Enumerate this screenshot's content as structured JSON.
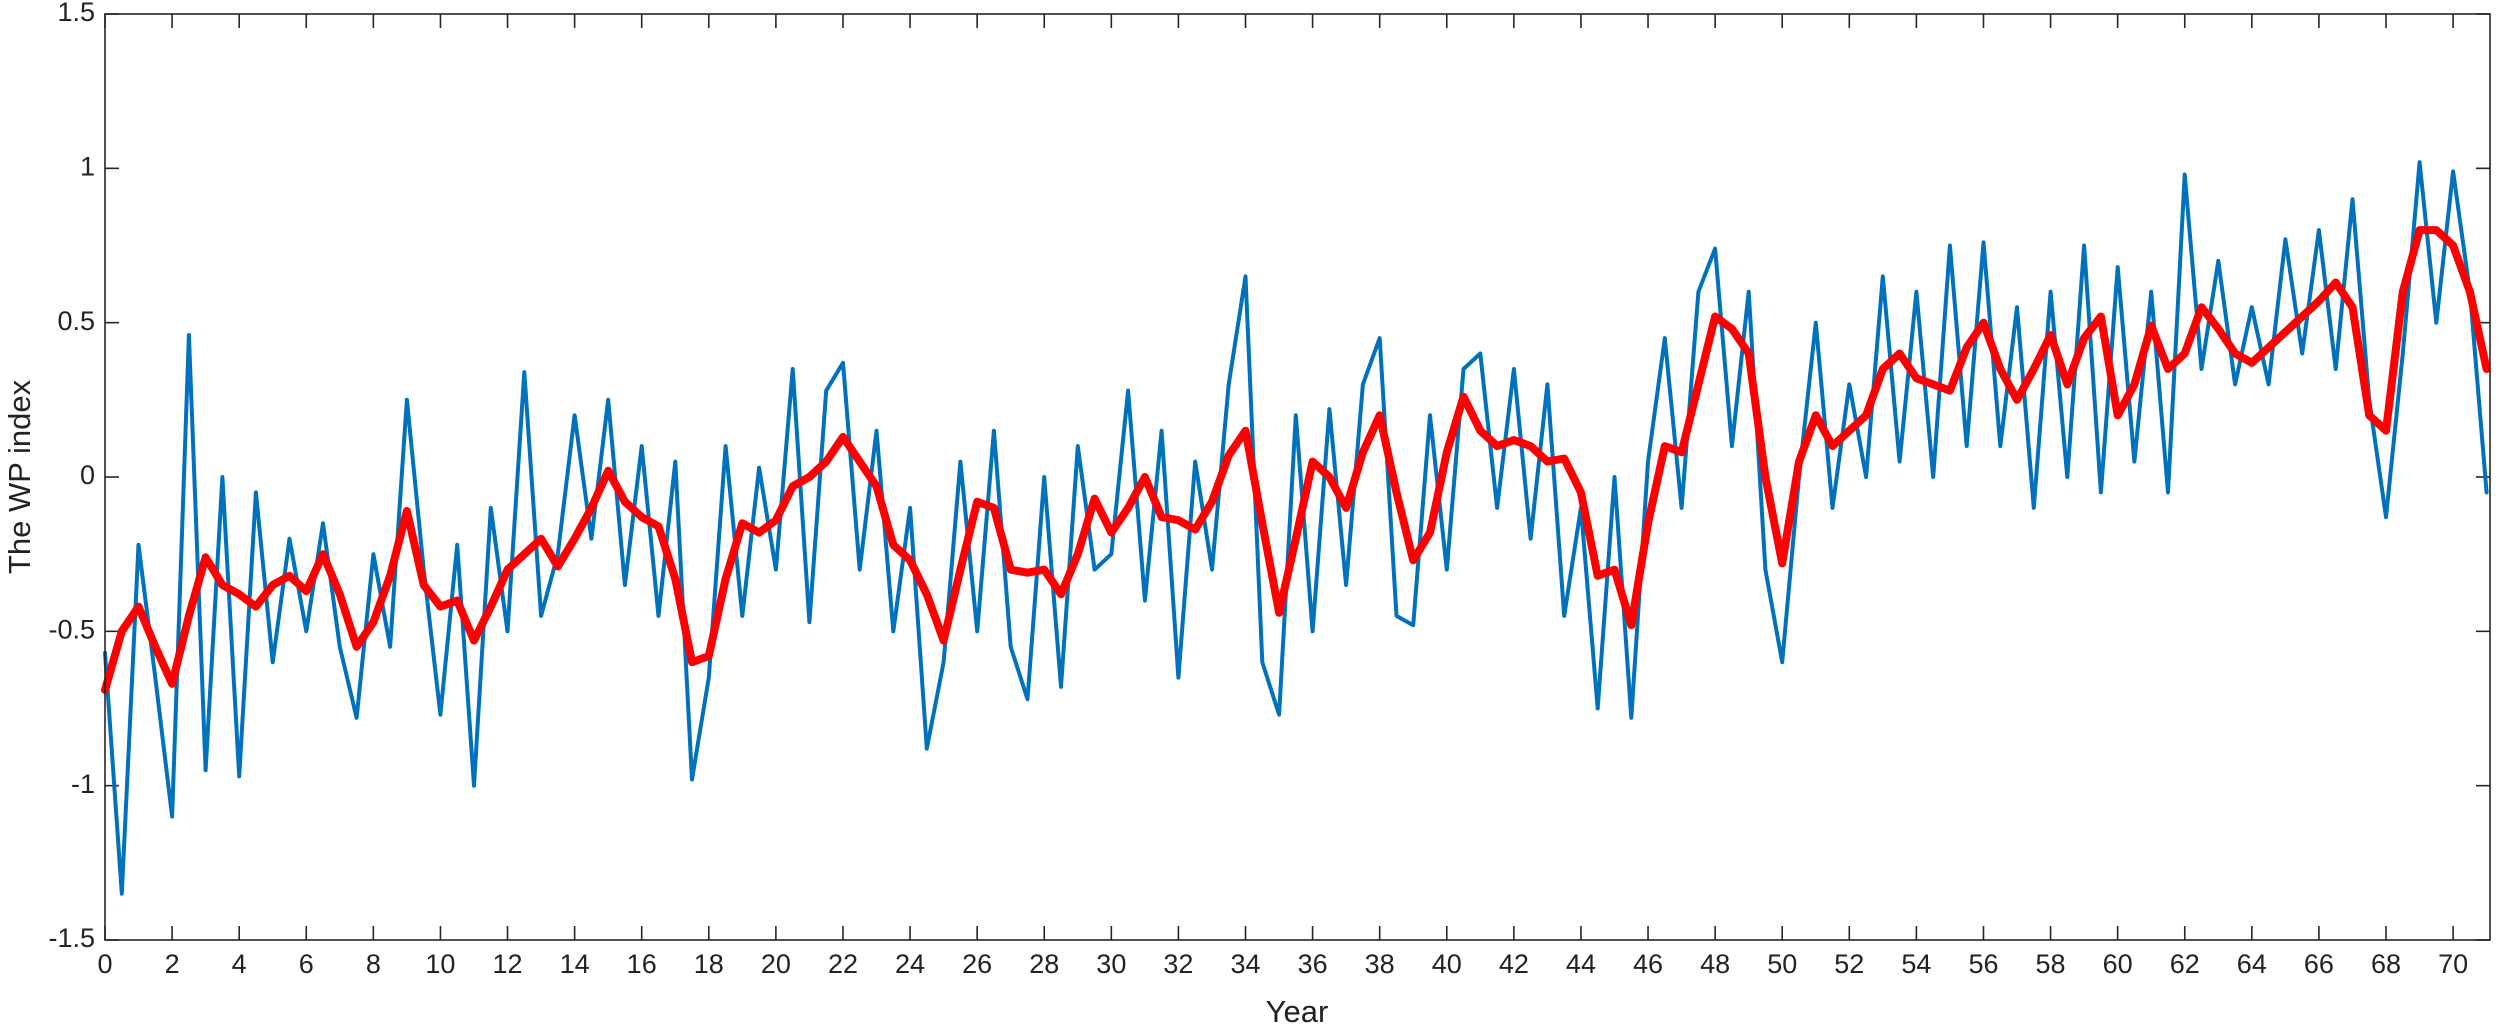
{
  "chart_data": {
    "type": "line",
    "xlabel": "Year",
    "ylabel": "The WP index",
    "xlim": [
      0,
      71.1
    ],
    "ylim": [
      -1.5,
      1.5
    ],
    "xticks": [
      0,
      2,
      4,
      6,
      8,
      10,
      12,
      14,
      16,
      18,
      20,
      22,
      24,
      26,
      28,
      30,
      32,
      34,
      36,
      38,
      40,
      42,
      44,
      46,
      48,
      50,
      52,
      54,
      56,
      58,
      60,
      62,
      64,
      66,
      68,
      70
    ],
    "yticks": [
      -1.5,
      -1,
      -0.5,
      0,
      0.5,
      1,
      1.5
    ],
    "grid": false,
    "x": [
      0,
      0.5,
      1,
      1.5,
      2,
      2.5,
      3,
      3.5,
      4,
      4.5,
      5,
      5.5,
      6,
      6.5,
      7,
      7.5,
      8,
      8.5,
      9,
      9.5,
      10,
      10.5,
      11,
      11.5,
      12,
      12.5,
      13,
      13.5,
      14,
      14.5,
      15,
      15.5,
      16,
      16.5,
      17,
      17.5,
      18,
      18.5,
      19,
      19.5,
      20,
      20.5,
      21,
      21.5,
      22,
      22.5,
      23,
      23.5,
      24,
      24.5,
      25,
      25.5,
      26,
      26.5,
      27,
      27.5,
      28,
      28.5,
      29,
      29.5,
      30,
      30.5,
      31,
      31.5,
      32,
      32.5,
      33,
      33.5,
      34,
      34.5,
      35,
      35.5,
      36,
      36.5,
      37,
      37.5,
      38,
      38.5,
      39,
      39.5,
      40,
      40.5,
      41,
      41.5,
      42,
      42.5,
      43,
      43.5,
      44,
      44.5,
      45,
      45.5,
      46,
      46.5,
      47,
      47.5,
      48,
      48.5,
      49,
      49.5,
      50,
      50.5,
      51,
      51.5,
      52,
      52.5,
      53,
      53.5,
      54,
      54.5,
      55,
      55.5,
      56,
      56.5,
      57,
      57.5,
      58,
      58.5,
      59,
      59.5,
      60,
      60.5,
      61,
      61.5,
      62,
      62.5,
      63,
      63.5,
      64,
      64.5,
      65,
      65.5,
      66,
      66.5,
      67,
      67.5,
      68,
      68.5,
      69,
      69.5,
      70,
      70.5,
      71
    ],
    "series": [
      {
        "color": "#0072bd",
        "width": 4,
        "values": [
          -0.57,
          -1.35,
          -0.22,
          -0.65,
          -1.1,
          0.46,
          -0.95,
          0.0,
          -0.97,
          -0.05,
          -0.6,
          -0.2,
          -0.5,
          -0.15,
          -0.55,
          -0.78,
          -0.25,
          -0.55,
          0.25,
          -0.3,
          -0.77,
          -0.22,
          -1.0,
          -0.1,
          -0.5,
          0.34,
          -0.45,
          -0.25,
          0.2,
          -0.2,
          0.25,
          -0.35,
          0.1,
          -0.45,
          0.05,
          -0.98,
          -0.65,
          0.1,
          -0.45,
          0.03,
          -0.3,
          0.35,
          -0.47,
          0.28,
          0.37,
          -0.3,
          0.15,
          -0.5,
          -0.1,
          -0.88,
          -0.6,
          0.05,
          -0.5,
          0.15,
          -0.55,
          -0.72,
          0.0,
          -0.68,
          0.1,
          -0.3,
          -0.25,
          0.28,
          -0.4,
          0.15,
          -0.65,
          0.05,
          -0.3,
          0.3,
          0.65,
          -0.6,
          -0.77,
          0.2,
          -0.5,
          0.22,
          -0.35,
          0.3,
          0.45,
          -0.45,
          -0.48,
          0.2,
          -0.3,
          0.35,
          0.4,
          -0.1,
          0.35,
          -0.2,
          0.3,
          -0.45,
          -0.1,
          -0.75,
          0.0,
          -0.78,
          0.05,
          0.45,
          -0.1,
          0.6,
          0.74,
          0.1,
          0.6,
          -0.3,
          -0.6,
          0.0,
          0.5,
          -0.1,
          0.3,
          0.0,
          0.65,
          0.05,
          0.6,
          0.0,
          0.75,
          0.1,
          0.76,
          0.1,
          0.55,
          -0.1,
          0.6,
          0.0,
          0.75,
          -0.05,
          0.68,
          0.05,
          0.6,
          -0.05,
          0.98,
          0.35,
          0.7,
          0.3,
          0.55,
          0.3,
          0.77,
          0.4,
          0.8,
          0.35,
          0.9,
          0.25,
          -0.13,
          0.4,
          1.02,
          0.5,
          0.99,
          0.6,
          -0.05
        ]
      },
      {
        "color": "#ff0000",
        "width": 8,
        "values": [
          -0.69,
          -0.5,
          -0.42,
          -0.55,
          -0.67,
          -0.45,
          -0.26,
          -0.35,
          -0.38,
          -0.42,
          -0.35,
          -0.32,
          -0.37,
          -0.25,
          -0.38,
          -0.55,
          -0.47,
          -0.32,
          -0.11,
          -0.35,
          -0.42,
          -0.4,
          -0.53,
          -0.42,
          -0.3,
          -0.25,
          -0.2,
          -0.29,
          -0.2,
          -0.1,
          0.02,
          -0.08,
          -0.13,
          -0.16,
          -0.33,
          -0.6,
          -0.58,
          -0.33,
          -0.15,
          -0.18,
          -0.14,
          -0.03,
          0.0,
          0.05,
          0.13,
          0.05,
          -0.03,
          -0.22,
          -0.27,
          -0.38,
          -0.53,
          -0.3,
          -0.08,
          -0.1,
          -0.3,
          -0.31,
          -0.3,
          -0.38,
          -0.25,
          -0.07,
          -0.18,
          -0.1,
          0.0,
          -0.13,
          -0.14,
          -0.17,
          -0.08,
          0.07,
          0.15,
          -0.15,
          -0.44,
          -0.2,
          0.05,
          0.0,
          -0.1,
          0.08,
          0.2,
          -0.05,
          -0.27,
          -0.18,
          0.08,
          0.26,
          0.15,
          0.1,
          0.12,
          0.1,
          0.05,
          0.06,
          -0.05,
          -0.32,
          -0.3,
          -0.48,
          -0.15,
          0.1,
          0.08,
          0.3,
          0.52,
          0.48,
          0.4,
          0.0,
          -0.28,
          0.05,
          0.2,
          0.1,
          0.15,
          0.2,
          0.35,
          0.4,
          0.32,
          0.3,
          0.28,
          0.42,
          0.5,
          0.35,
          0.25,
          0.35,
          0.46,
          0.3,
          0.45,
          0.52,
          0.2,
          0.3,
          0.49,
          0.35,
          0.4,
          0.55,
          0.48,
          0.4,
          0.37,
          0.42,
          0.47,
          0.52,
          0.57,
          0.63,
          0.55,
          0.2,
          0.15,
          0.6,
          0.8,
          0.8,
          0.75,
          0.6,
          0.35
        ]
      }
    ]
  }
}
